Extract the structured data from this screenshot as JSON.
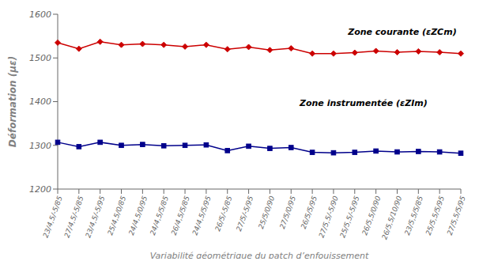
{
  "chart_data": {
    "type": "line",
    "title": "",
    "xlabel": "Variabilité géométrique du patch d’enfouissement",
    "ylabel": "Déformation (με)",
    "categories": [
      "23/4,5/-5/85",
      "27/4,5/-5/85",
      "23/4,5/-5/95",
      "25/4,5/0/85",
      "24/4,5/0/95",
      "24/4,5/5/85",
      "26/4,5/5/85",
      "24/4,5/5/95",
      "26/5/-5/85",
      "27/5/-5/95",
      "25/5/0/90",
      "27/5/0/95",
      "26/5/5/95",
      "27/5,5/-5/90",
      "25/5,5/-5/95",
      "26/5,5/0/90",
      "26/5,5/10/90",
      "23/5,5/5/85",
      "25/5,5/5/95",
      "27/5,5/5/95"
    ],
    "series": [
      {
        "name": "Zone courante",
        "color": "#cc0000",
        "marker": "diamond",
        "values": [
          1535,
          1521,
          1537,
          1530,
          1532,
          1530,
          1526,
          1530,
          1520,
          1525,
          1518,
          1522,
          1510,
          1510,
          1512,
          1516,
          1513,
          1515,
          1513,
          1510
        ]
      },
      {
        "name": "Zone instrumentée",
        "color": "#00008b",
        "marker": "square",
        "values": [
          1307,
          1297,
          1307,
          1300,
          1302,
          1299,
          1300,
          1301,
          1288,
          1298,
          1293,
          1295,
          1284,
          1283,
          1284,
          1287,
          1285,
          1286,
          1285,
          1282
        ]
      }
    ],
    "ylim": [
      1200,
      1600
    ],
    "yticks": [
      1200,
      1300,
      1400,
      1500,
      1600
    ],
    "grid": false,
    "annotations": [
      "Zone courante (εZCm)",
      "Zone instrumentée (εZIm)"
    ]
  }
}
